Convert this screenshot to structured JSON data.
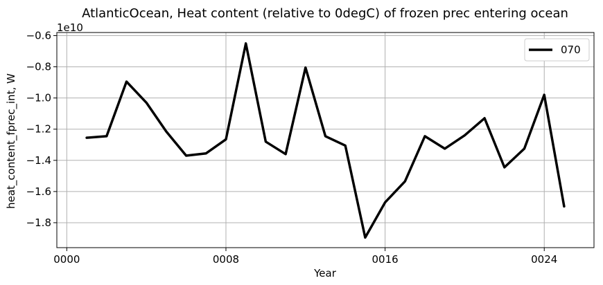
{
  "chart_data": {
    "type": "line",
    "title": "AtlanticOcean, Heat content (relative to 0degC) of frozen prec entering ocean",
    "xlabel": "Year",
    "ylabel": "heat_content_fprec_int, W",
    "y_offset_label": "1e10",
    "xlim": [
      -0.5,
      26.5
    ],
    "ylim": [
      -1.96,
      -0.58
    ],
    "x_ticks": [
      0,
      8,
      16,
      24
    ],
    "x_tick_labels": [
      "0000",
      "0008",
      "0016",
      "0024"
    ],
    "y_ticks": [
      -1.8,
      -1.6,
      -1.4,
      -1.2,
      -1.0,
      -0.8,
      -0.6
    ],
    "y_tick_labels": [
      "−1.8",
      "−1.6",
      "−1.4",
      "−1.2",
      "−1.0",
      "−0.8",
      "−0.6"
    ],
    "grid": true,
    "legend_position": "top-right",
    "series": [
      {
        "name": "070",
        "color": "#000000",
        "x": [
          1,
          2,
          3,
          4,
          5,
          6,
          7,
          8,
          9,
          10,
          11,
          12,
          13,
          14,
          15,
          16,
          17,
          18,
          19,
          20,
          21,
          22,
          23,
          24,
          25
        ],
        "y": [
          -1.255,
          -1.245,
          -0.895,
          -1.03,
          -1.215,
          -1.37,
          -1.355,
          -1.265,
          -0.65,
          -1.28,
          -1.36,
          -0.805,
          -1.245,
          -1.305,
          -1.895,
          -1.67,
          -1.535,
          -1.245,
          -1.325,
          -1.24,
          -1.13,
          -1.445,
          -1.325,
          -0.98,
          -1.695
        ]
      }
    ]
  }
}
